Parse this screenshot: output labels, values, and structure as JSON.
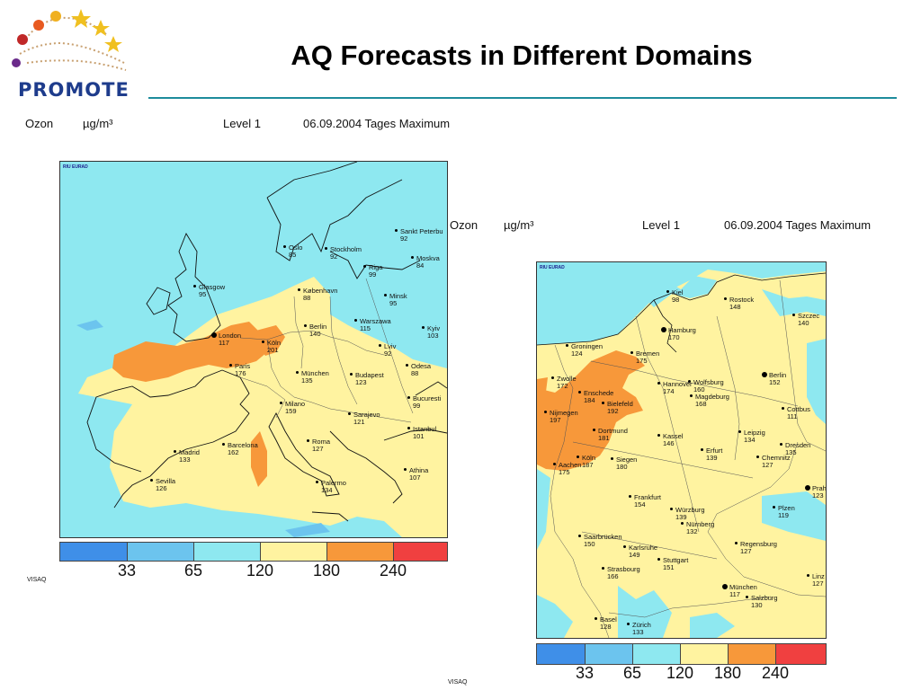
{
  "slide": {
    "title": "AQ Forecasts in Different Domains",
    "logo_text": "PROMOTE"
  },
  "maps": [
    {
      "header": {
        "species": "Ozon",
        "unit": "µg/m³",
        "level": "Level  1",
        "date": "06.09.2004 Tages Maximum"
      },
      "logo_label": "RIU EURAD",
      "legend_ticks": [
        "33",
        "65",
        "120",
        "180",
        "240"
      ],
      "footer": "VISAQ",
      "cities": [
        {
          "name": "Sankt Peterbu",
          "value": "92"
        },
        {
          "name": "Oslo",
          "value": "85"
        },
        {
          "name": "Stockholm",
          "value": "92"
        },
        {
          "name": "Moskva",
          "value": "84"
        },
        {
          "name": "Riga",
          "value": "99"
        },
        {
          "name": "Glasgow",
          "value": "95"
        },
        {
          "name": "København",
          "value": "88"
        },
        {
          "name": "Minsk",
          "value": "95"
        },
        {
          "name": "Berlin",
          "value": "140"
        },
        {
          "name": "Warszawa",
          "value": "115"
        },
        {
          "name": "Kyiv",
          "value": "103"
        },
        {
          "name": "London",
          "value": "117"
        },
        {
          "name": "Köln",
          "value": "201"
        },
        {
          "name": "Lviv",
          "value": "92"
        },
        {
          "name": "Paris",
          "value": "176"
        },
        {
          "name": "München",
          "value": "135"
        },
        {
          "name": "Budapest",
          "value": "123"
        },
        {
          "name": "Odesa",
          "value": "88"
        },
        {
          "name": "Milano",
          "value": "159"
        },
        {
          "name": "Bucuresti",
          "value": "99"
        },
        {
          "name": "Sarajevo",
          "value": "121"
        },
        {
          "name": "Istanbul",
          "value": "101"
        },
        {
          "name": "Madrid",
          "value": "133"
        },
        {
          "name": "Barcelona",
          "value": "162"
        },
        {
          "name": "Roma",
          "value": "127"
        },
        {
          "name": "Sevilla",
          "value": "126"
        },
        {
          "name": "Palermo",
          "value": "134"
        },
        {
          "name": "Athina",
          "value": "107"
        }
      ]
    },
    {
      "header": {
        "species": "Ozon",
        "unit": "µg/m³",
        "level": "Level  1",
        "date": "06.09.2004 Tages Maximum"
      },
      "logo_label": "RIU EURAD",
      "legend_ticks": [
        "33",
        "65",
        "120",
        "180",
        "240"
      ],
      "footer": "VISAQ",
      "cities": [
        {
          "name": "Kiel",
          "value": "98"
        },
        {
          "name": "Rostock",
          "value": "148"
        },
        {
          "name": "Szczec",
          "value": "140"
        },
        {
          "name": "Hamburg",
          "value": "170"
        },
        {
          "name": "Groningen",
          "value": "124"
        },
        {
          "name": "Bremen",
          "value": "175"
        },
        {
          "name": "Berlin",
          "value": "152"
        },
        {
          "name": "Zwolle",
          "value": "172"
        },
        {
          "name": "Hannover",
          "value": "174"
        },
        {
          "name": "Wolfsburg",
          "value": "160"
        },
        {
          "name": "Enschede",
          "value": "184"
        },
        {
          "name": "Magdeburg",
          "value": "168"
        },
        {
          "name": "Bielefeld",
          "value": "192"
        },
        {
          "name": "Cottbus",
          "value": "111"
        },
        {
          "name": "Nijmegen",
          "value": "197"
        },
        {
          "name": "Dortmund",
          "value": "181"
        },
        {
          "name": "Leipzig",
          "value": "134"
        },
        {
          "name": "Kassel",
          "value": "146"
        },
        {
          "name": "Dresden",
          "value": "135"
        },
        {
          "name": "Erfurt",
          "value": "139"
        },
        {
          "name": "Chemnitz",
          "value": "127"
        },
        {
          "name": "Köln",
          "value": "187"
        },
        {
          "name": "Aachen",
          "value": "175"
        },
        {
          "name": "Siegen",
          "value": "180"
        },
        {
          "name": "Praha",
          "value": "123"
        },
        {
          "name": "Frankfurt",
          "value": "154"
        },
        {
          "name": "Plzen",
          "value": "119"
        },
        {
          "name": "Würzburg",
          "value": "139"
        },
        {
          "name": "Nürnberg",
          "value": "132"
        },
        {
          "name": "Saarbrücken",
          "value": "150"
        },
        {
          "name": "Regensburg",
          "value": "127"
        },
        {
          "name": "Karlsruhe",
          "value": "149"
        },
        {
          "name": "Stuttgart",
          "value": "151"
        },
        {
          "name": "Strasbourg",
          "value": "166"
        },
        {
          "name": "Linz",
          "value": "127"
        },
        {
          "name": "München",
          "value": "117"
        },
        {
          "name": "Salzburg",
          "value": "130"
        },
        {
          "name": "Basel",
          "value": "128"
        },
        {
          "name": "Zürich",
          "value": "133"
        }
      ]
    }
  ],
  "colors": {
    "sea": "#8ee8f0",
    "class_33": "#3f8fe8",
    "class_65": "#6cc4ee",
    "class_120": "#8ee8f0",
    "class_180": "#fff3a0",
    "class_240": "#f7983a",
    "class_max": "#f04040",
    "title_rule": "#1e8c9c",
    "logo_text": "#1e3c8c"
  }
}
